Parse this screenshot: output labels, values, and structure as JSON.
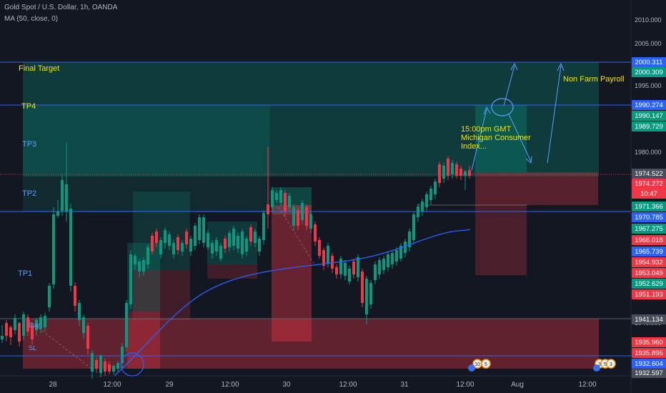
{
  "header": {
    "symbol": "Gold Spot / U.S. Dollar, 1h, OANDA",
    "indicator": "MA (50, close, 0)"
  },
  "x_axis": [
    "28",
    "12:00",
    "29",
    "12:00",
    "30",
    "12:00",
    "31",
    "12:00",
    "Aug",
    "12:00"
  ],
  "y_axis": [
    "2010.000",
    "2005.000",
    "1995.000",
    "1980.000",
    "1940.000"
  ],
  "price_tags": [
    {
      "text": "2000.311",
      "color": "#2962ff"
    },
    {
      "text": "2000.309",
      "color": "#089981"
    },
    {
      "text": "1990.274",
      "color": "#2962ff"
    },
    {
      "text": "1990.147",
      "color": "#089981"
    },
    {
      "text": "1989.729",
      "color": "#089981"
    },
    {
      "text": "1974.522",
      "color": "#4a4e5a"
    },
    {
      "text": "1974.272",
      "color": "#f23645"
    },
    {
      "text": "10:47",
      "color": "#f23645"
    },
    {
      "text": "1971.366",
      "color": "#089981"
    },
    {
      "text": "1970.785",
      "color": "#2962ff"
    },
    {
      "text": "1967.275",
      "color": "#089981"
    },
    {
      "text": "1966.018",
      "color": "#f23645"
    },
    {
      "text": "1965.739",
      "color": "#2962ff"
    },
    {
      "text": "1954.932",
      "color": "#f23645"
    },
    {
      "text": "1953.049",
      "color": "#f23645"
    },
    {
      "text": "1952.629",
      "color": "#089981"
    },
    {
      "text": "1951.193",
      "color": "#f23645"
    },
    {
      "text": "1941.134",
      "color": "#4a4e5a"
    },
    {
      "text": "1935.960",
      "color": "#f23645"
    },
    {
      "text": "1935.896",
      "color": "#f23645"
    },
    {
      "text": "1932.604",
      "color": "#2962ff"
    },
    {
      "text": "1932.597",
      "color": "#4a4e5a"
    }
  ],
  "annotations": {
    "final_target": "Final Target",
    "tp4": "TP4",
    "tp3": "TP3",
    "tp2": "TP2",
    "tp1": "TP1",
    "event1_line1": "15:00pm GMT",
    "event1_line2": "Michigan Consumer",
    "event1_line3": "Index...",
    "event2": "Non Farm Payroll",
    "buy": "Buy",
    "sl": "SL"
  },
  "event_icons": [
    {
      "label": "10"
    },
    {
      "label": "5"
    },
    {
      "label": "3"
    },
    {
      "label": "5"
    },
    {
      "label": "3"
    }
  ],
  "colors": {
    "background": "#131722",
    "bull": "#089981",
    "bear": "#f23645",
    "ma": "#2962ff",
    "level": "#2962ff",
    "annotation": "#f7e600"
  }
}
